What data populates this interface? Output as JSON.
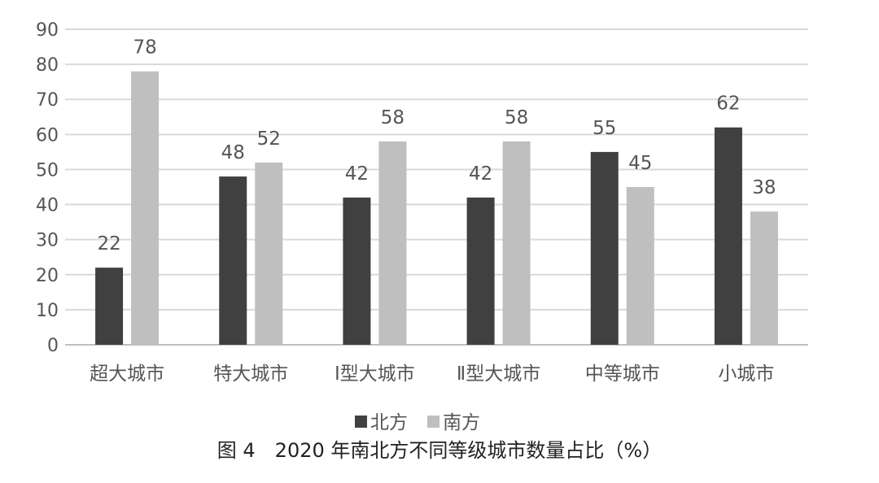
{
  "chart_data": {
    "type": "bar",
    "categories": [
      "超大城市",
      "特大城市",
      "Ⅰ型大城市",
      "Ⅱ型大城市",
      "中等城市",
      "小城市"
    ],
    "series": [
      {
        "name": "北方",
        "values": [
          22,
          48,
          42,
          42,
          55,
          62
        ],
        "color": "#404040"
      },
      {
        "name": "南方",
        "values": [
          78,
          52,
          58,
          58,
          45,
          38
        ],
        "color": "#bfbfbf"
      }
    ],
    "data_labels": [
      [
        "22",
        "48",
        "42",
        "42",
        "55",
        "62"
      ],
      [
        "78",
        "52",
        "58",
        "58",
        "45",
        "38"
      ]
    ],
    "yticks": [
      "0",
      "10",
      "20",
      "30",
      "40",
      "50",
      "60",
      "70",
      "80",
      "90"
    ],
    "ylim": [
      0,
      90
    ],
    "grid": true,
    "legend_position": "bottom-center"
  },
  "caption": "图 4　2020 年南北方不同等级城市数量占比（%）"
}
